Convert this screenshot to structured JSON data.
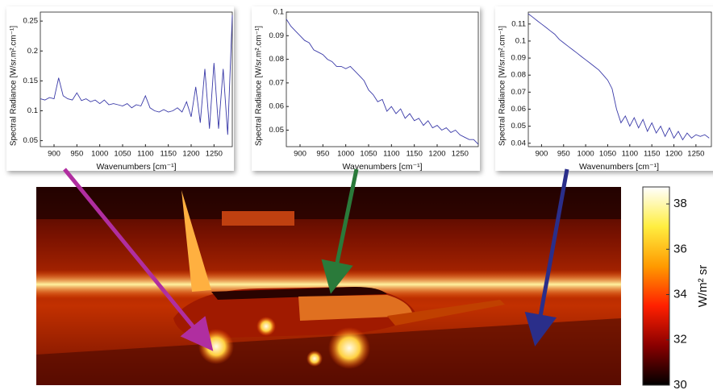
{
  "chart_data": [
    {
      "type": "line",
      "color": "#3a3aa8",
      "x_label": "Wavenumbers [cm⁻¹]",
      "y_label": "Spectral Radiance [W/sr.m².cm⁻¹]",
      "x": [
        870,
        880,
        890,
        900,
        910,
        920,
        930,
        940,
        950,
        960,
        970,
        980,
        990,
        1000,
        1010,
        1020,
        1030,
        1040,
        1050,
        1060,
        1070,
        1080,
        1090,
        1100,
        1110,
        1120,
        1130,
        1140,
        1150,
        1160,
        1170,
        1180,
        1190,
        1200,
        1210,
        1220,
        1230,
        1240,
        1250,
        1260,
        1270,
        1280,
        1290
      ],
      "values": [
        0.12,
        0.118,
        0.122,
        0.12,
        0.155,
        0.125,
        0.12,
        0.118,
        0.13,
        0.117,
        0.12,
        0.115,
        0.118,
        0.112,
        0.118,
        0.11,
        0.112,
        0.11,
        0.108,
        0.112,
        0.105,
        0.11,
        0.108,
        0.125,
        0.105,
        0.1,
        0.098,
        0.102,
        0.098,
        0.1,
        0.105,
        0.098,
        0.115,
        0.09,
        0.14,
        0.08,
        0.17,
        0.07,
        0.18,
        0.07,
        0.17,
        0.06,
        0.26
      ],
      "xlim": [
        870,
        1290
      ],
      "xticks": [
        900,
        950,
        1000,
        1050,
        1100,
        1150,
        1200,
        1250
      ],
      "ylim": [
        0.04,
        0.265
      ],
      "yticks": [
        0.05,
        0.1,
        0.15,
        0.2,
        0.25
      ]
    },
    {
      "type": "line",
      "color": "#3a3aa8",
      "x_label": "Wavenumbers [cm⁻¹]",
      "y_label": "Spectral Radiance [W/sr.m².cm⁻¹]",
      "x": [
        870,
        880,
        890,
        900,
        910,
        920,
        930,
        940,
        950,
        960,
        970,
        980,
        990,
        1000,
        1010,
        1020,
        1030,
        1040,
        1050,
        1060,
        1070,
        1080,
        1090,
        1100,
        1110,
        1120,
        1130,
        1140,
        1150,
        1160,
        1170,
        1180,
        1190,
        1200,
        1210,
        1220,
        1230,
        1240,
        1250,
        1260,
        1270,
        1280,
        1290
      ],
      "values": [
        0.097,
        0.094,
        0.092,
        0.09,
        0.088,
        0.087,
        0.084,
        0.083,
        0.082,
        0.08,
        0.079,
        0.077,
        0.077,
        0.076,
        0.077,
        0.075,
        0.073,
        0.071,
        0.067,
        0.065,
        0.062,
        0.063,
        0.058,
        0.06,
        0.057,
        0.059,
        0.055,
        0.057,
        0.054,
        0.055,
        0.052,
        0.054,
        0.051,
        0.052,
        0.05,
        0.051,
        0.049,
        0.05,
        0.048,
        0.047,
        0.046,
        0.046,
        0.044
      ],
      "xlim": [
        870,
        1290
      ],
      "xticks": [
        900,
        950,
        1000,
        1050,
        1100,
        1150,
        1200,
        1250
      ],
      "ylim": [
        0.043,
        0.1
      ],
      "yticks": [
        0.05,
        0.06,
        0.07,
        0.08,
        0.09,
        0.1
      ]
    },
    {
      "type": "line",
      "color": "#3a3aa8",
      "x_label": "Wavenumbers [cm⁻¹]",
      "y_label": "Spectral Radiance [W/sr.m².cm⁻¹]",
      "x": [
        870,
        880,
        890,
        900,
        910,
        920,
        930,
        940,
        950,
        960,
        970,
        980,
        990,
        1000,
        1010,
        1020,
        1030,
        1040,
        1050,
        1060,
        1070,
        1080,
        1090,
        1100,
        1110,
        1120,
        1130,
        1140,
        1150,
        1160,
        1170,
        1180,
        1190,
        1200,
        1210,
        1220,
        1230,
        1240,
        1250,
        1260,
        1270,
        1280
      ],
      "values": [
        0.116,
        0.114,
        0.112,
        0.11,
        0.108,
        0.106,
        0.104,
        0.101,
        0.099,
        0.097,
        0.095,
        0.093,
        0.091,
        0.089,
        0.087,
        0.085,
        0.083,
        0.08,
        0.077,
        0.072,
        0.06,
        0.052,
        0.056,
        0.05,
        0.055,
        0.049,
        0.054,
        0.047,
        0.052,
        0.046,
        0.05,
        0.044,
        0.049,
        0.043,
        0.047,
        0.042,
        0.046,
        0.043,
        0.045,
        0.044,
        0.045,
        0.043
      ],
      "xlim": [
        870,
        1285
      ],
      "xticks": [
        900,
        950,
        1000,
        1050,
        1100,
        1150,
        1200,
        1250
      ],
      "ylim": [
        0.038,
        0.117
      ],
      "yticks": [
        0.04,
        0.05,
        0.06,
        0.07,
        0.08,
        0.09,
        0.1,
        0.11
      ]
    },
    {
      "type": "colorbar",
      "label": "W/m² sr",
      "colormap": "hot",
      "ylim": [
        30,
        38.75
      ],
      "yticks": [
        30,
        32,
        34,
        36,
        38
      ]
    }
  ]
}
